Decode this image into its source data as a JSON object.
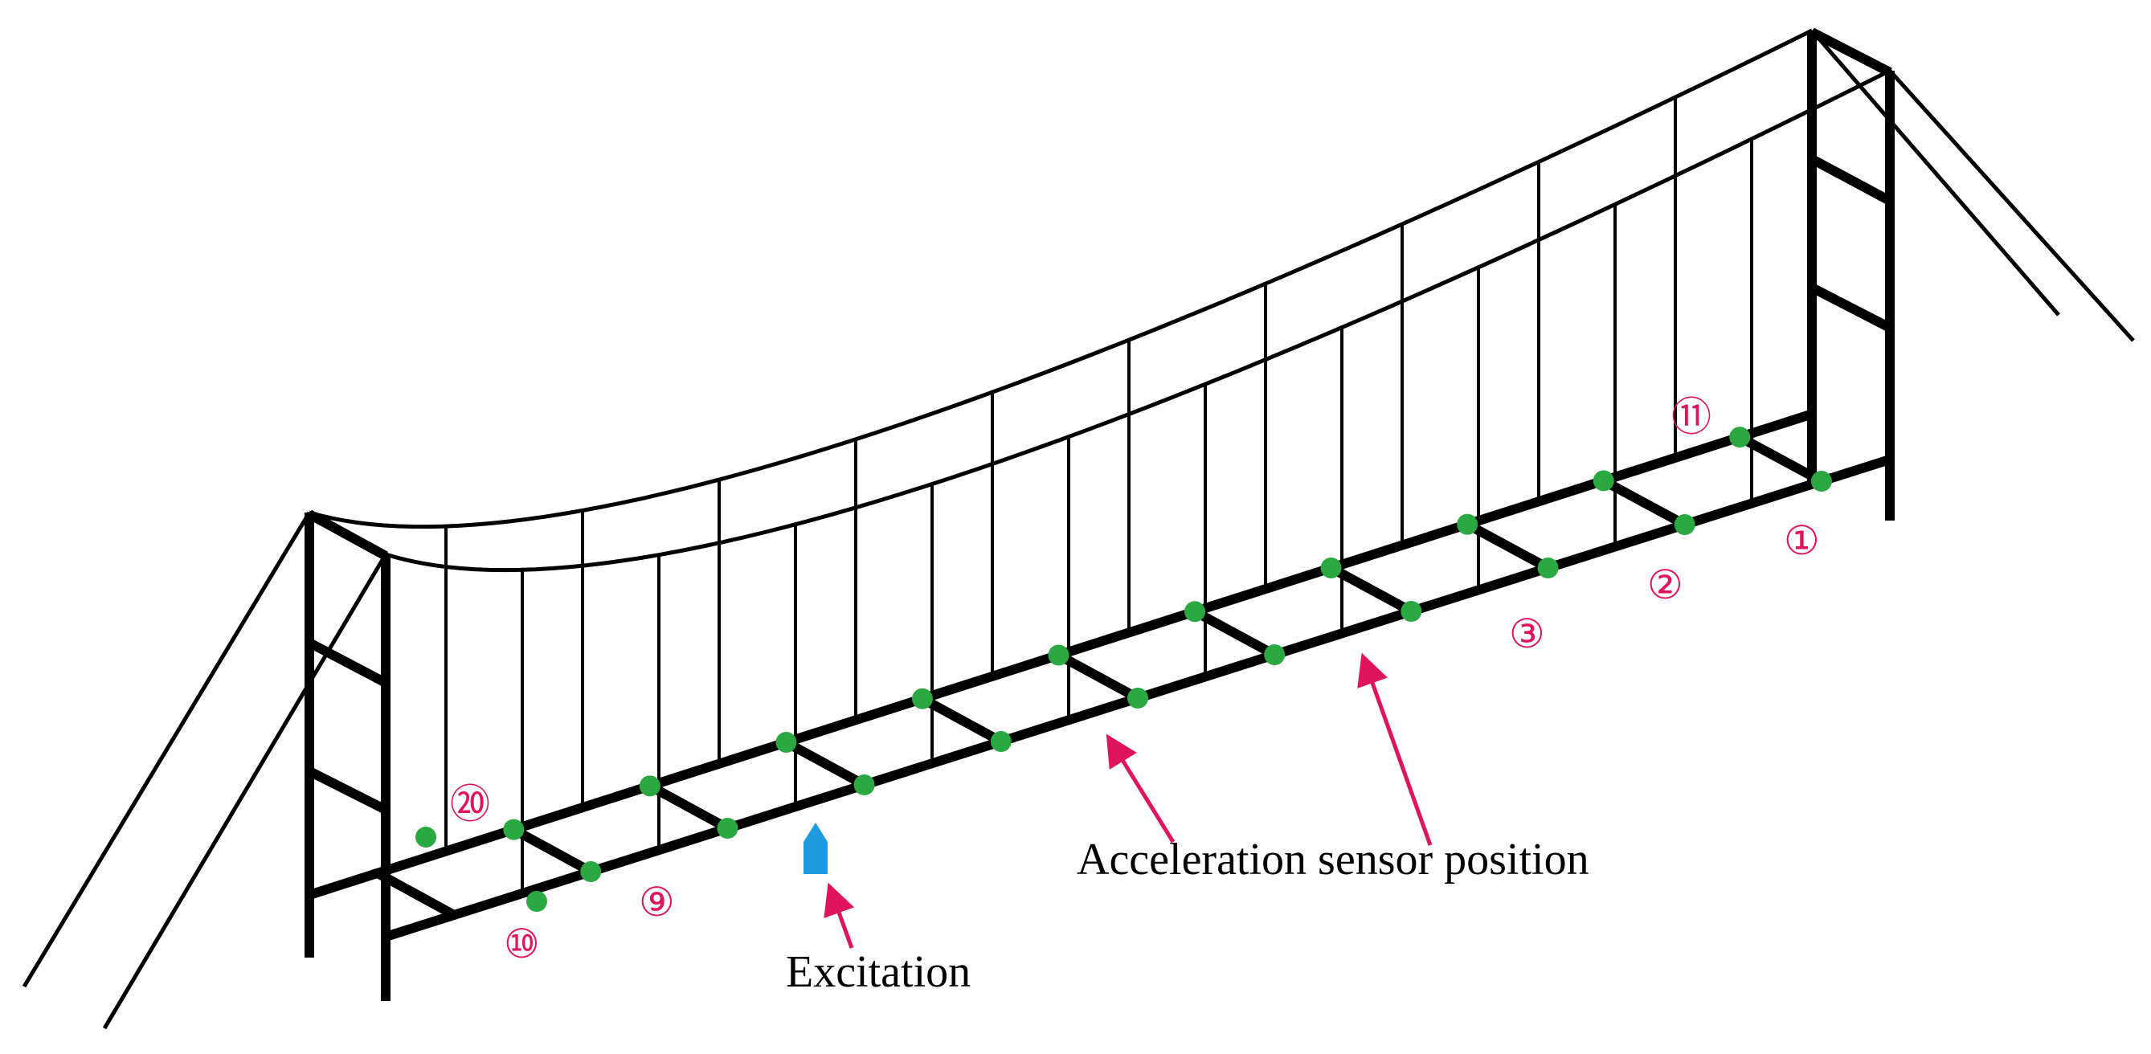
{
  "labels": {
    "sensor_label": "Acceleration sensor position",
    "excitation_label": "Excitation",
    "sensor_numbers": {
      "n1": "①",
      "n2": "②",
      "n3": "③",
      "n9": "⑨",
      "n10": "⑩",
      "n11": "⑪",
      "n20": "⑳"
    }
  },
  "colors": {
    "structure": "#000000",
    "sensor": "#2aa842",
    "excitation": "#1e9be0",
    "annotation": "#e0145c"
  }
}
